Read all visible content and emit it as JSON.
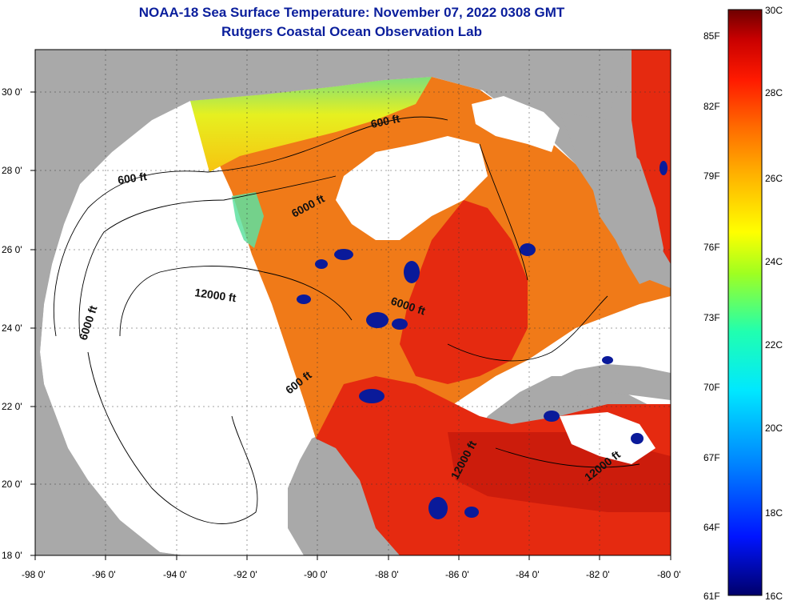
{
  "header": {
    "title": "NOAA-18 Sea Surface Temperature:  November 07, 2022 0308 GMT",
    "subtitle": "Rutgers Coastal Ocean Observation Lab"
  },
  "axes": {
    "lon_ticks": [
      "-98 0'",
      "-96 0'",
      "-94 0'",
      "-92 0'",
      "-90 0'",
      "-88 0'",
      "-86 0'",
      "-84 0'",
      "-82 0'",
      "-80 0'"
    ],
    "lat_ticks": [
      "30 0'",
      "28 0'",
      "26 0'",
      "24 0'",
      "22 0'",
      "20 0'",
      "18 0'"
    ],
    "lon_range": [
      -98,
      -80
    ],
    "lat_range": [
      18,
      31
    ]
  },
  "contour_labels": [
    "600 ft",
    "600 ft",
    "6000 ft",
    "12000 ft",
    "6000 ft",
    "6000 ft",
    "600 ft",
    "12000 ft",
    "12000 ft"
  ],
  "colorbar": {
    "fahrenheit": [
      "85F",
      "82F",
      "79F",
      "76F",
      "73F",
      "70F",
      "67F",
      "64F",
      "61F"
    ],
    "celsius": [
      "30C",
      "28C",
      "26C",
      "24C",
      "22C",
      "20C",
      "18C",
      "16C"
    ],
    "range_c": [
      16,
      30
    ]
  },
  "colors": {
    "land": "#a9a9a9",
    "nodata": "#ffffff",
    "title": "#0a1e9c",
    "warm": "#e52a10",
    "orange": "#f07a18",
    "cloud": "#0a1a9a"
  }
}
